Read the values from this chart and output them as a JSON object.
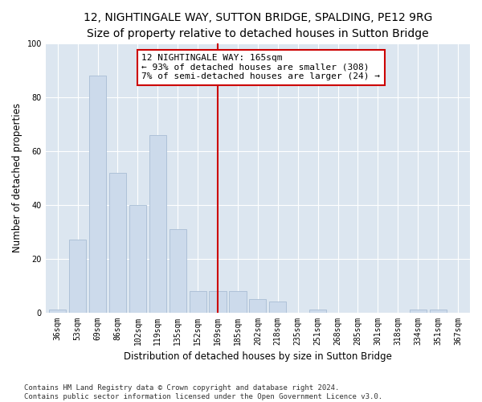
{
  "title": "12, NIGHTINGALE WAY, SUTTON BRIDGE, SPALDING, PE12 9RG",
  "subtitle": "Size of property relative to detached houses in Sutton Bridge",
  "xlabel": "Distribution of detached houses by size in Sutton Bridge",
  "ylabel": "Number of detached properties",
  "categories": [
    "36sqm",
    "53sqm",
    "69sqm",
    "86sqm",
    "102sqm",
    "119sqm",
    "135sqm",
    "152sqm",
    "169sqm",
    "185sqm",
    "202sqm",
    "218sqm",
    "235sqm",
    "251sqm",
    "268sqm",
    "285sqm",
    "301sqm",
    "318sqm",
    "334sqm",
    "351sqm",
    "367sqm"
  ],
  "values": [
    1,
    27,
    88,
    52,
    40,
    66,
    31,
    8,
    8,
    8,
    5,
    4,
    0,
    1,
    0,
    0,
    0,
    0,
    1,
    1,
    0
  ],
  "bar_color": "#ccdaeb",
  "bar_edgecolor": "#a8bdd4",
  "vline_x_bar_index": 8,
  "vline_color": "#cc0000",
  "annotation_text": "12 NIGHTINGALE WAY: 165sqm\n← 93% of detached houses are smaller (308)\n7% of semi-detached houses are larger (24) →",
  "annotation_box_facecolor": "#ffffff",
  "annotation_box_edgecolor": "#cc0000",
  "ylim": [
    0,
    100
  ],
  "yticks": [
    0,
    20,
    40,
    60,
    80,
    100
  ],
  "figure_facecolor": "#ffffff",
  "axes_facecolor": "#dce6f0",
  "grid_color": "#ffffff",
  "footer": "Contains HM Land Registry data © Crown copyright and database right 2024.\nContains public sector information licensed under the Open Government Licence v3.0.",
  "title_fontsize": 10,
  "xlabel_fontsize": 8.5,
  "ylabel_fontsize": 8.5,
  "tick_fontsize": 7,
  "annotation_fontsize": 8,
  "footer_fontsize": 6.5
}
